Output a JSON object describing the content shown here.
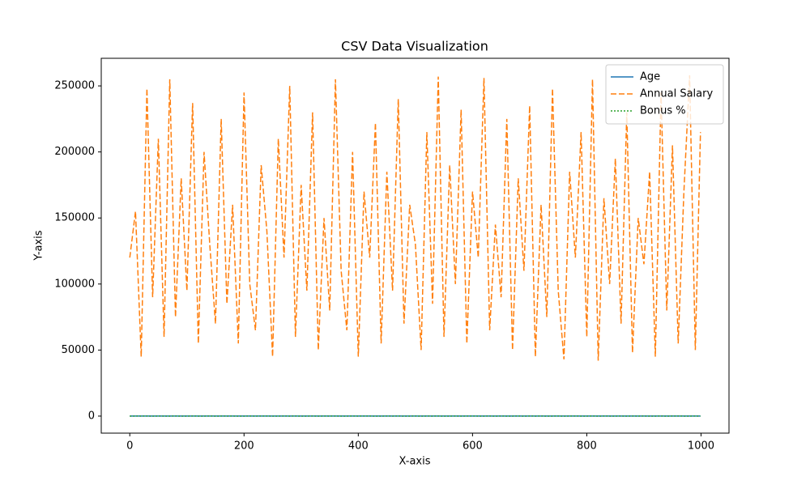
{
  "chart_data": {
    "type": "line",
    "title": "CSV Data Visualization",
    "x_label": "X-axis",
    "y_label": "Y-axis",
    "x": [
      0,
      10,
      20,
      30,
      40,
      50,
      60,
      70,
      80,
      90,
      100,
      110,
      120,
      130,
      140,
      150,
      160,
      170,
      180,
      190,
      200,
      210,
      220,
      230,
      240,
      250,
      260,
      270,
      280,
      290,
      300,
      310,
      320,
      330,
      340,
      350,
      360,
      370,
      380,
      390,
      400,
      410,
      420,
      430,
      440,
      450,
      460,
      470,
      480,
      490,
      500,
      510,
      520,
      530,
      540,
      550,
      560,
      570,
      580,
      590,
      600,
      610,
      620,
      630,
      640,
      650,
      660,
      670,
      680,
      690,
      700,
      710,
      720,
      730,
      740,
      750,
      760,
      770,
      780,
      790,
      800,
      810,
      820,
      830,
      840,
      850,
      860,
      870,
      880,
      890,
      900,
      910,
      920,
      930,
      940,
      950,
      960,
      970,
      980,
      990,
      999
    ],
    "series": [
      {
        "name": "Age",
        "color": "#1f77b4",
        "style": "solid",
        "values": [
          34,
          45,
          28,
          52,
          61,
          23,
          39,
          47,
          30,
          55,
          42,
          26,
          58,
          36,
          49,
          31,
          63,
          27,
          44,
          50,
          38,
          22,
          57,
          41,
          33,
          60,
          29,
          46,
          53,
          35,
          24,
          48,
          62,
          37,
          43,
          25,
          56,
          32,
          51,
          40,
          64,
          28,
          45,
          59,
          34,
          22,
          47,
          38,
          54,
          30,
          61,
          43,
          26,
          49,
          36,
          57,
          31,
          52,
          24,
          46,
          39,
          63,
          27,
          44,
          58,
          33,
          50,
          23,
          41,
          55,
          35,
          48,
          29,
          62,
          37,
          45,
          25,
          53,
          40,
          60,
          32,
          47,
          22,
          56,
          38,
          43,
          28,
          64,
          35,
          51,
          26,
          49,
          42,
          59,
          31,
          46,
          24,
          54,
          37,
          61,
          33
        ]
      },
      {
        "name": "Annual Salary",
        "color": "#ff7f0e",
        "style": "dashed",
        "values": [
          120000,
          155000,
          45000,
          248000,
          90000,
          210000,
          60000,
          255000,
          75000,
          180000,
          95000,
          237000,
          55000,
          200000,
          130000,
          70000,
          225000,
          85000,
          160000,
          55000,
          245000,
          100000,
          65000,
          190000,
          140000,
          45000,
          210000,
          120000,
          250000,
          60000,
          175000,
          95000,
          230000,
          50000,
          150000,
          80000,
          255000,
          110000,
          65000,
          200000,
          45000,
          170000,
          120000,
          222000,
          55000,
          185000,
          95000,
          240000,
          70000,
          160000,
          130000,
          50000,
          215000,
          85000,
          257000,
          60000,
          190000,
          100000,
          232000,
          55000,
          170000,
          120000,
          256000,
          65000,
          145000,
          90000,
          225000,
          50000,
          180000,
          110000,
          235000,
          45000,
          160000,
          75000,
          248000,
          95000,
          43000,
          185000,
          120000,
          215000,
          60000,
          255000,
          42000,
          165000,
          100000,
          195000,
          70000,
          230000,
          48000,
          150000,
          115000,
          185000,
          45000,
          245000,
          80000,
          205000,
          55000,
          170000,
          258000,
          50000,
          215000
        ]
      },
      {
        "name": "Bonus %",
        "color": "#2ca02c",
        "style": "dotted",
        "values": [
          5,
          12,
          8,
          15,
          3,
          18,
          10,
          7,
          14,
          2,
          9,
          16,
          6,
          11,
          19,
          4,
          13,
          8,
          17,
          1,
          10,
          15,
          6,
          12,
          20,
          3,
          9,
          14,
          7,
          18,
          5,
          11,
          16,
          2,
          13,
          8,
          19,
          4,
          10,
          15,
          6,
          12,
          17,
          3,
          9,
          14,
          7,
          20,
          1,
          11,
          16,
          5,
          13,
          8,
          18,
          2,
          10,
          15,
          4,
          12,
          19,
          6,
          9,
          14,
          3,
          17,
          8,
          11,
          20,
          5,
          13,
          7,
          16,
          2,
          10,
          18,
          4,
          12,
          15,
          6,
          9,
          19,
          3,
          14,
          8,
          11,
          17,
          1,
          13,
          7,
          16,
          5,
          10,
          18,
          2,
          12,
          15,
          6,
          9,
          20,
          4
        ]
      }
    ],
    "xlim": [
      -49.95,
      1048.95
    ],
    "xticks": [
      0,
      200,
      400,
      600,
      800,
      1000
    ],
    "ylim": [
      -12900,
      270900
    ],
    "yticks": [
      0,
      50000,
      100000,
      150000,
      200000,
      250000
    ],
    "legend": "upper right"
  }
}
